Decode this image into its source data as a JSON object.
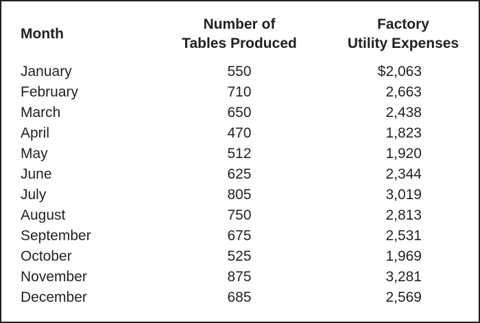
{
  "colors": {
    "text": "#231F20",
    "border": "#231F20",
    "background": "#FFFFFF"
  },
  "table": {
    "headers": {
      "month": "Month",
      "tables_line1": "Number of",
      "tables_line2": "Tables Produced",
      "expenses_line1": "Factory",
      "expenses_line2": "Utility Expenses"
    },
    "rows": [
      {
        "month": "January",
        "tables": "550",
        "expenses": "$2,063"
      },
      {
        "month": "February",
        "tables": "710",
        "expenses": "2,663"
      },
      {
        "month": "March",
        "tables": "650",
        "expenses": "2,438"
      },
      {
        "month": "April",
        "tables": "470",
        "expenses": "1,823"
      },
      {
        "month": "May",
        "tables": "512",
        "expenses": "1,920"
      },
      {
        "month": "June",
        "tables": "625",
        "expenses": "2,344"
      },
      {
        "month": "July",
        "tables": "805",
        "expenses": "3,019"
      },
      {
        "month": "August",
        "tables": "750",
        "expenses": "2,813"
      },
      {
        "month": "September",
        "tables": "675",
        "expenses": "2,531"
      },
      {
        "month": "October",
        "tables": "525",
        "expenses": "1,969"
      },
      {
        "month": "November",
        "tables": "875",
        "expenses": "3,281"
      },
      {
        "month": "December",
        "tables": "685",
        "expenses": "2,569"
      }
    ]
  },
  "chart_data": {
    "type": "table",
    "title": "",
    "columns": [
      "Month",
      "Number of Tables Produced",
      "Factory Utility Expenses"
    ],
    "rows": [
      [
        "January",
        550,
        2063
      ],
      [
        "February",
        710,
        2663
      ],
      [
        "March",
        650,
        2438
      ],
      [
        "April",
        470,
        1823
      ],
      [
        "May",
        512,
        1920
      ],
      [
        "June",
        625,
        2344
      ],
      [
        "July",
        805,
        3019
      ],
      [
        "August",
        750,
        2813
      ],
      [
        "September",
        675,
        2531
      ],
      [
        "October",
        525,
        1969
      ],
      [
        "November",
        875,
        3281
      ],
      [
        "December",
        685,
        2569
      ]
    ],
    "notes": "Dollar sign shown only on first expense value; expense values right-aligned; tables-produced values centered."
  }
}
